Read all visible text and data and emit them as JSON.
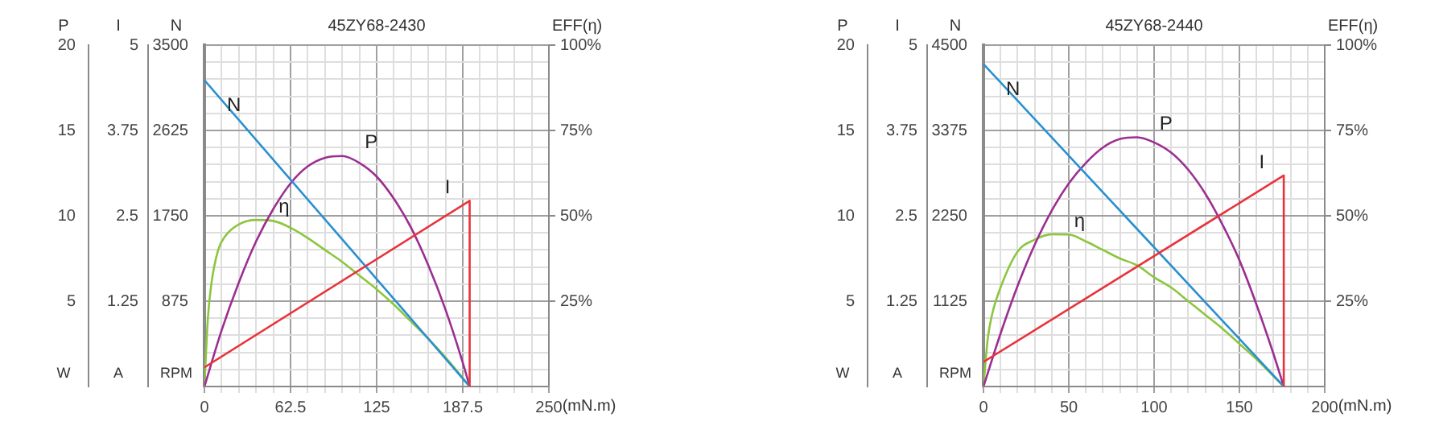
{
  "chart_data": [
    {
      "type": "line",
      "title": "45ZY68-2430",
      "xlabel": "(mN.m)",
      "ylabel": "N",
      "y2label": "EFF(η)",
      "y3label": "P",
      "annotations": [
        "W",
        "RPM"
      ],
      "grid": true,
      "marker": "none",
      "line_style": "solid",
      "xlim": [
        0,
        250
      ],
      "xticks": [
        0,
        {
          "value": 12.5,
          "label": null
        },
        {
          "value": 25,
          "label": null
        },
        {
          "value": 37.5,
          "label": null
        },
        {
          "value": 50,
          "label": null
        },
        62.5,
        {
          "value": 75,
          "label": null
        },
        {
          "value": 87.5,
          "label": null
        },
        {
          "value": 100,
          "label": null
        },
        {
          "value": 112.5,
          "label": null
        },
        125,
        {
          "value": 137.5,
          "label": null
        },
        {
          "value": 150,
          "label": null
        },
        {
          "value": 162.5,
          "label": null
        },
        {
          "value": 175,
          "label": null
        },
        187.5,
        {
          "value": 200,
          "label": null
        },
        {
          "value": 212.5,
          "label": null
        },
        {
          "value": 225,
          "label": null
        },
        {
          "value": 237.5,
          "label": null
        },
        250
      ],
      "ylim": [
        0,
        3500
      ],
      "yticks": [
        875,
        1750,
        2625,
        3500
      ],
      "y2lim": [
        0,
        100
      ],
      "y2ticks": [
        {
          "value": 25,
          "label": "25%"
        },
        {
          "value": 50,
          "label": "50%"
        },
        {
          "value": 75,
          "label": "75%"
        },
        {
          "value": 100,
          "label": "100%"
        }
      ],
      "y3lim": [
        0,
        20
      ],
      "y3ticks": [
        {
          "value": 1,
          "label": null
        },
        {
          "value": 2,
          "label": null
        },
        {
          "value": 3,
          "label": null
        },
        {
          "value": 4,
          "label": null
        },
        5,
        {
          "value": 6,
          "label": null
        },
        {
          "value": 7,
          "label": null
        },
        {
          "value": 8,
          "label": null
        },
        {
          "value": 9,
          "label": null
        },
        10,
        {
          "value": 11,
          "label": null
        },
        {
          "value": 12,
          "label": null
        },
        {
          "value": 13,
          "label": null
        },
        {
          "value": 14,
          "label": null
        },
        15,
        {
          "value": 16,
          "label": null
        },
        {
          "value": 17,
          "label": null
        },
        {
          "value": 18,
          "label": null
        },
        {
          "value": 19,
          "label": null
        },
        20
      ],
      "series": [
        {
          "name": "N",
          "color": "#2a8fd0",
          "x": [
            0,
            192.5
          ],
          "values": [
            3140,
            0
          ]
        },
        {
          "name": "P",
          "color": "#9b2f91",
          "axis": "y3",
          "x": [
            0,
            12.5,
            25,
            37.5,
            50,
            62.5,
            75,
            87.5,
            100,
            112.5,
            125,
            137.5,
            150,
            162.5,
            175,
            187.5,
            192.5
          ],
          "values": [
            0,
            3.3,
            6.1,
            8.5,
            10.4,
            11.9,
            12.9,
            13.4,
            13.5,
            13.1,
            12.3,
            11,
            9.3,
            7.1,
            4.5,
            1.4,
            0
          ]
        },
        {
          "name": "η",
          "color": "#8cc63f",
          "axis": "y2",
          "x": [
            0,
            2.5,
            5,
            10,
            15,
            25,
            37.5,
            50,
            62.5,
            75,
            87.5,
            100,
            112.5,
            125,
            137.5,
            150,
            162.5,
            175,
            187.5,
            192.5
          ],
          "values": [
            0,
            20,
            30,
            40,
            44,
            47.5,
            48.8,
            48.5,
            46.5,
            43.5,
            40,
            36.5,
            32.5,
            28.5,
            24,
            19,
            14,
            8.5,
            2.5,
            0
          ]
        }
      ]
    },
    {
      "type": "line",
      "ylabel": "I",
      "annotations": [
        "A"
      ],
      "tick_labels": "y",
      "line_style": "solid",
      "marker": "none",
      "xlim": [
        0,
        250
      ],
      "ylim": [
        0,
        5
      ],
      "yticks": [
        1.25,
        2.5,
        3.75,
        5
      ],
      "series": [
        {
          "name": "I",
          "color": "#e8333c",
          "x": [
            0,
            192.5,
            192.5
          ],
          "values": [
            0.28,
            2.72,
            0
          ]
        }
      ]
    },
    {
      "type": "line",
      "title": "45ZY68-2440",
      "xlabel": "(mN.m)",
      "ylabel": "N",
      "y2label": "EFF(η)",
      "y3label": "P",
      "annotations": [
        "W",
        "RPM"
      ],
      "grid": true,
      "marker": "none",
      "line_style": "solid",
      "xlim": [
        0,
        200
      ],
      "xticks": [
        0,
        {
          "value": 10,
          "label": null
        },
        {
          "value": 20,
          "label": null
        },
        {
          "value": 30,
          "label": null
        },
        {
          "value": 40,
          "label": null
        },
        50,
        {
          "value": 60,
          "label": null
        },
        {
          "value": 70,
          "label": null
        },
        {
          "value": 80,
          "label": null
        },
        {
          "value": 90,
          "label": null
        },
        100,
        {
          "value": 110,
          "label": null
        },
        {
          "value": 120,
          "label": null
        },
        {
          "value": 130,
          "label": null
        },
        {
          "value": 140,
          "label": null
        },
        150,
        {
          "value": 160,
          "label": null
        },
        {
          "value": 170,
          "label": null
        },
        {
          "value": 180,
          "label": null
        },
        {
          "value": 190,
          "label": null
        },
        200
      ],
      "ylim": [
        0,
        4500
      ],
      "yticks": [
        1125,
        2250,
        3375,
        4500
      ],
      "y2lim": [
        0,
        100
      ],
      "y2ticks": [
        {
          "value": 25,
          "label": "25%"
        },
        {
          "value": 50,
          "label": "50%"
        },
        {
          "value": 75,
          "label": "75%"
        },
        {
          "value": 100,
          "label": "100%"
        }
      ],
      "y3lim": [
        0,
        20
      ],
      "y3ticks": [
        {
          "value": 1,
          "label": null
        },
        {
          "value": 2,
          "label": null
        },
        {
          "value": 3,
          "label": null
        },
        {
          "value": 4,
          "label": null
        },
        5,
        {
          "value": 6,
          "label": null
        },
        {
          "value": 7,
          "label": null
        },
        {
          "value": 8,
          "label": null
        },
        {
          "value": 9,
          "label": null
        },
        10,
        {
          "value": 11,
          "label": null
        },
        {
          "value": 12,
          "label": null
        },
        {
          "value": 13,
          "label": null
        },
        {
          "value": 14,
          "label": null
        },
        15,
        {
          "value": 16,
          "label": null
        },
        {
          "value": 17,
          "label": null
        },
        {
          "value": 18,
          "label": null
        },
        {
          "value": 19,
          "label": null
        },
        20
      ],
      "series": [
        {
          "name": "N",
          "color": "#2a8fd0",
          "x": [
            0,
            176
          ],
          "values": [
            4250,
            0
          ]
        },
        {
          "name": "P",
          "color": "#9b2f91",
          "axis": "y3",
          "x": [
            0,
            10,
            20,
            30,
            40,
            50,
            60,
            70,
            80,
            90,
            100,
            110,
            120,
            130,
            140,
            150,
            160,
            170,
            176
          ],
          "values": [
            0,
            3.1,
            5.9,
            8.3,
            10.3,
            11.9,
            13.1,
            14,
            14.5,
            14.6,
            14.3,
            13.7,
            12.7,
            11.3,
            9.5,
            7.4,
            4.8,
            1.9,
            0
          ]
        },
        {
          "name": "η",
          "color": "#8cc63f",
          "axis": "y2",
          "x": [
            0,
            2.5,
            5,
            10,
            20,
            30,
            40,
            50,
            60,
            70,
            80,
            90,
            100,
            110,
            120,
            130,
            140,
            150,
            160,
            170,
            176
          ],
          "values": [
            0,
            14,
            21,
            29,
            39.5,
            43,
            44.6,
            44.5,
            42.5,
            40,
            37.5,
            35.5,
            32,
            29,
            25,
            21,
            17,
            12.5,
            8,
            3,
            0
          ]
        }
      ]
    },
    {
      "type": "line",
      "ylabel": "I",
      "annotations": [
        "A"
      ],
      "tick_labels": "y",
      "line_style": "solid",
      "marker": "none",
      "xlim": [
        0,
        200
      ],
      "ylim": [
        0,
        5
      ],
      "yticks": [
        1.25,
        2.5,
        3.75,
        5
      ],
      "series": [
        {
          "name": "I",
          "color": "#e8333c",
          "x": [
            0,
            176,
            176
          ],
          "values": [
            0.36,
            3.09,
            0
          ]
        }
      ]
    }
  ]
}
